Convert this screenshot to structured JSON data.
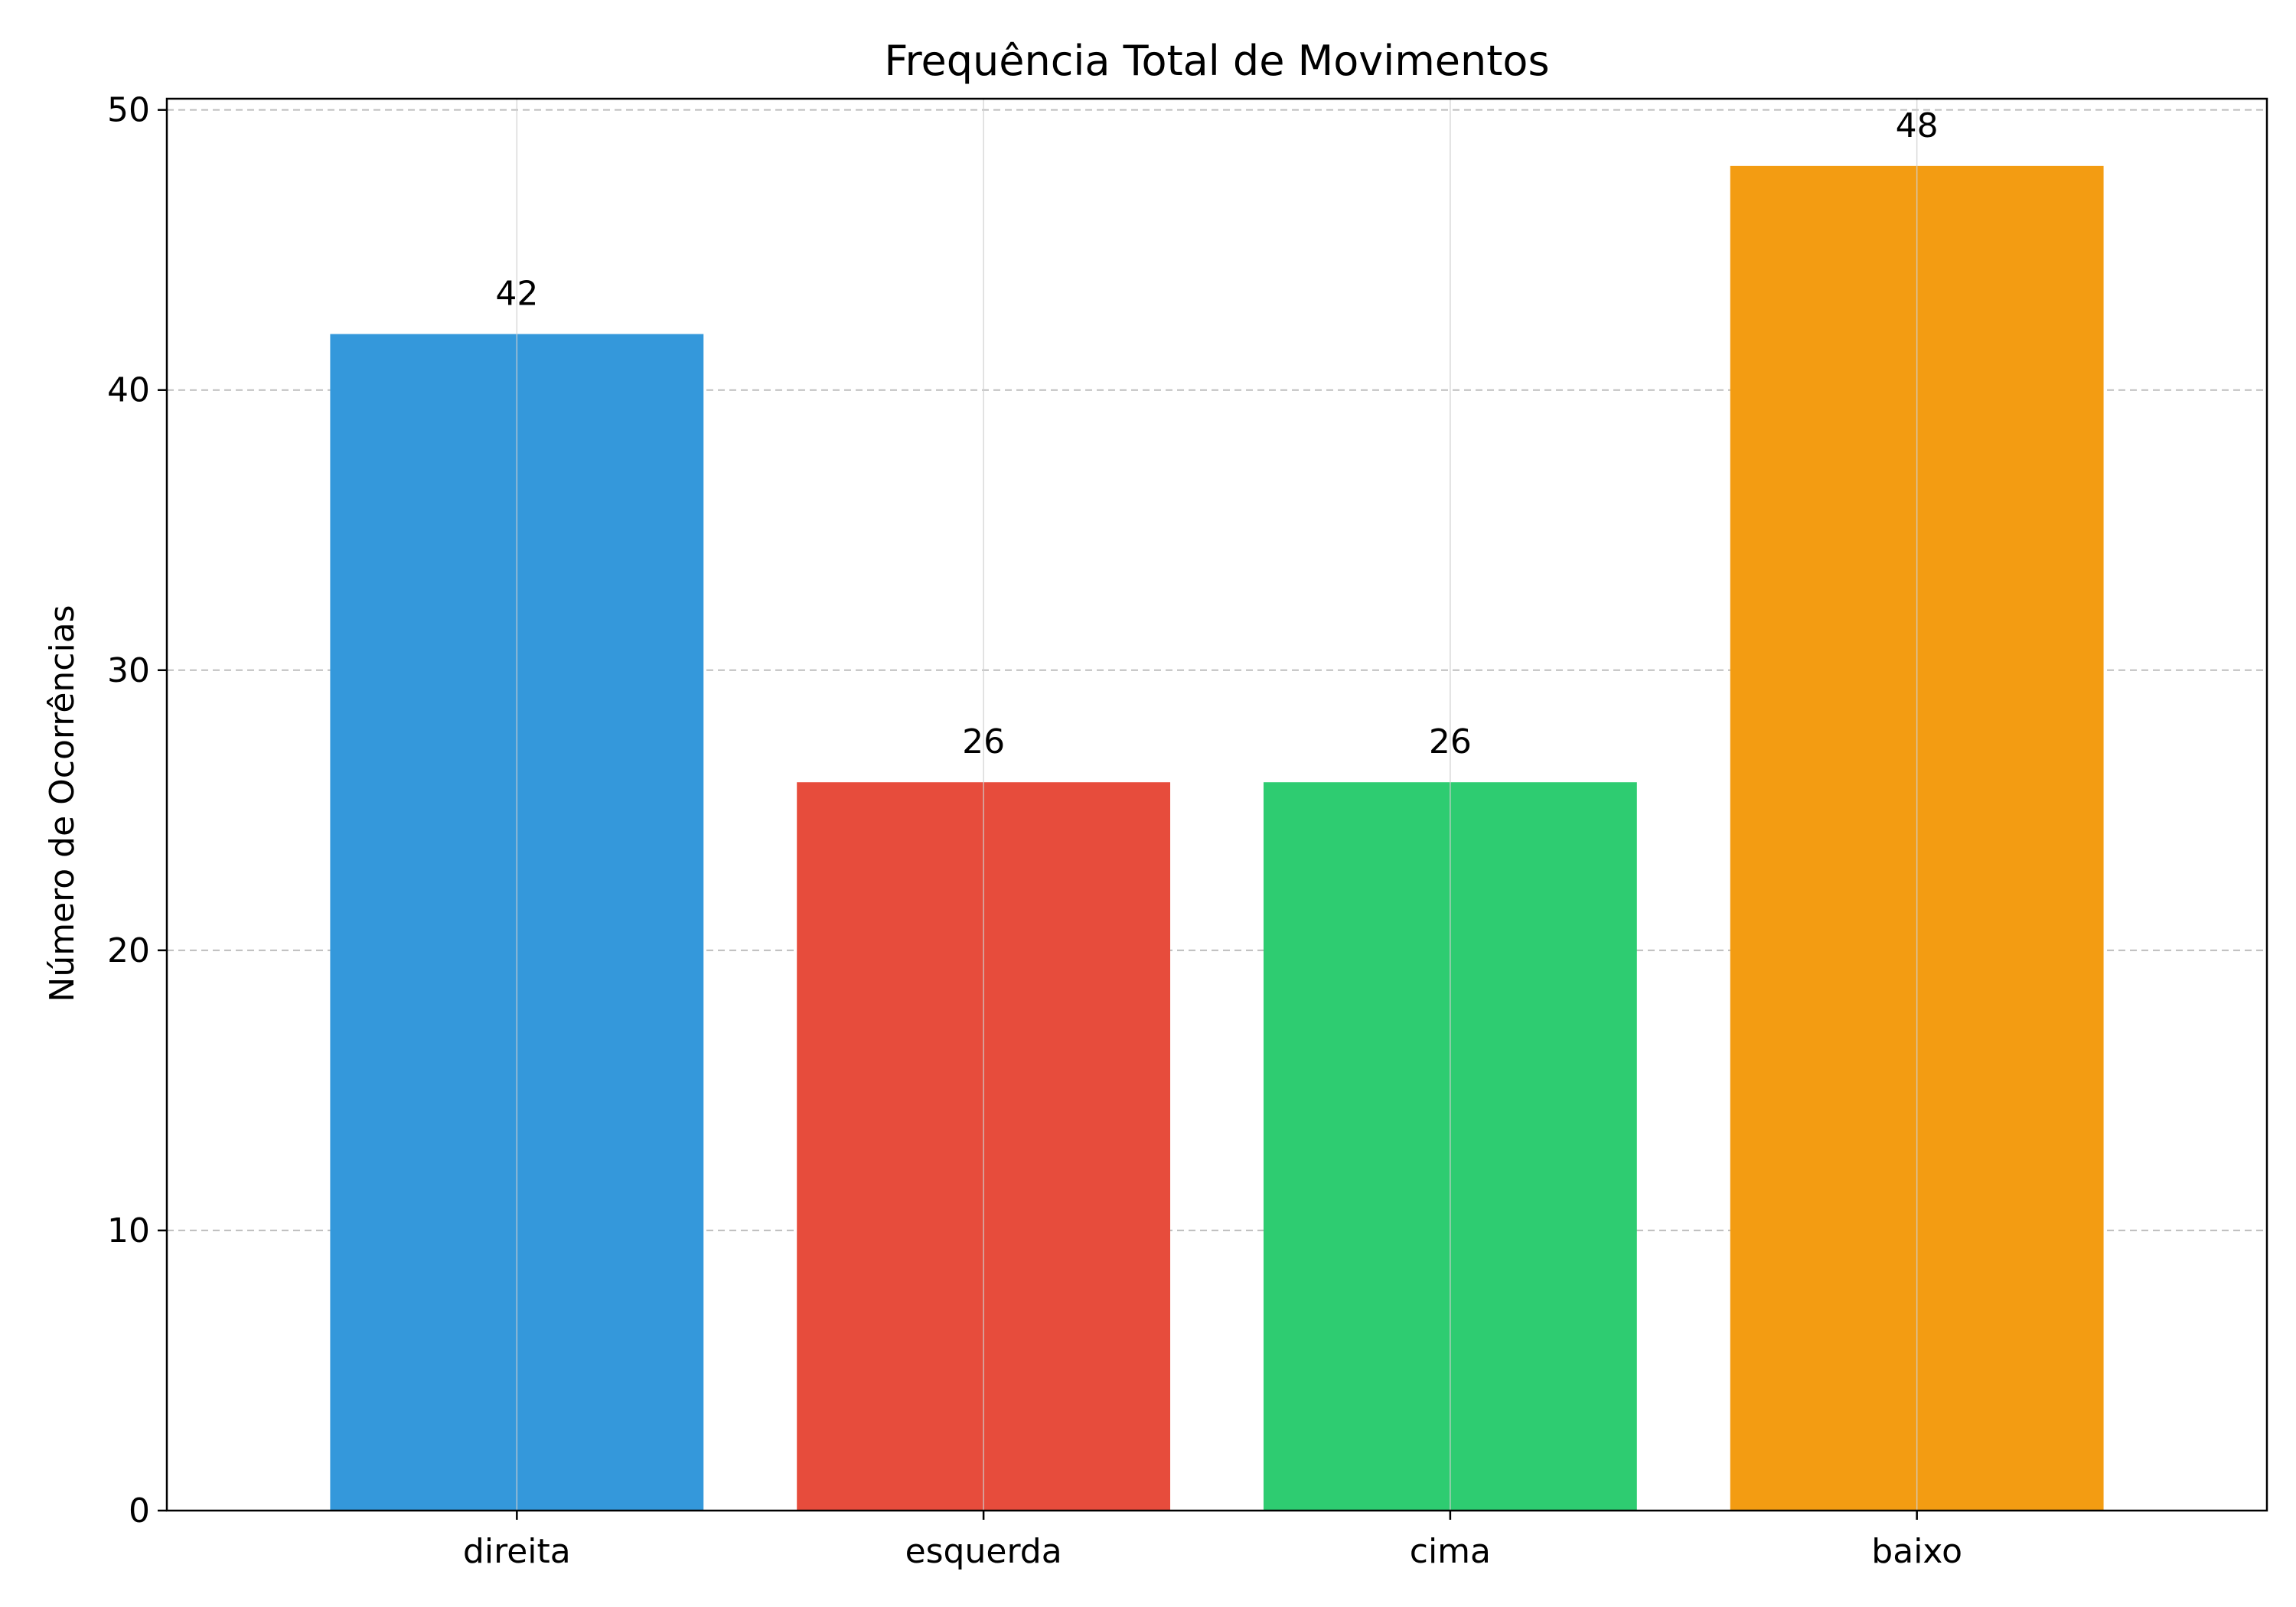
{
  "chart_data": {
    "type": "bar",
    "title": "Frequência Total de Movimentos",
    "xlabel": "",
    "ylabel": "Número de Ocorrências",
    "categories": [
      "direita",
      "esquerda",
      "cima",
      "baixo"
    ],
    "values": [
      42,
      26,
      26,
      48
    ],
    "data_labels": [
      "42",
      "26",
      "26",
      "48"
    ],
    "colors": [
      "#3498db",
      "#e74c3c",
      "#2ecc71",
      "#f39c12"
    ],
    "ylim": [
      0,
      50.4
    ],
    "yticks": [
      0,
      10,
      20,
      30,
      40,
      50
    ],
    "ytick_labels": [
      "0",
      "10",
      "20",
      "30",
      "40",
      "50"
    ],
    "grid": true,
    "legend": "none"
  }
}
